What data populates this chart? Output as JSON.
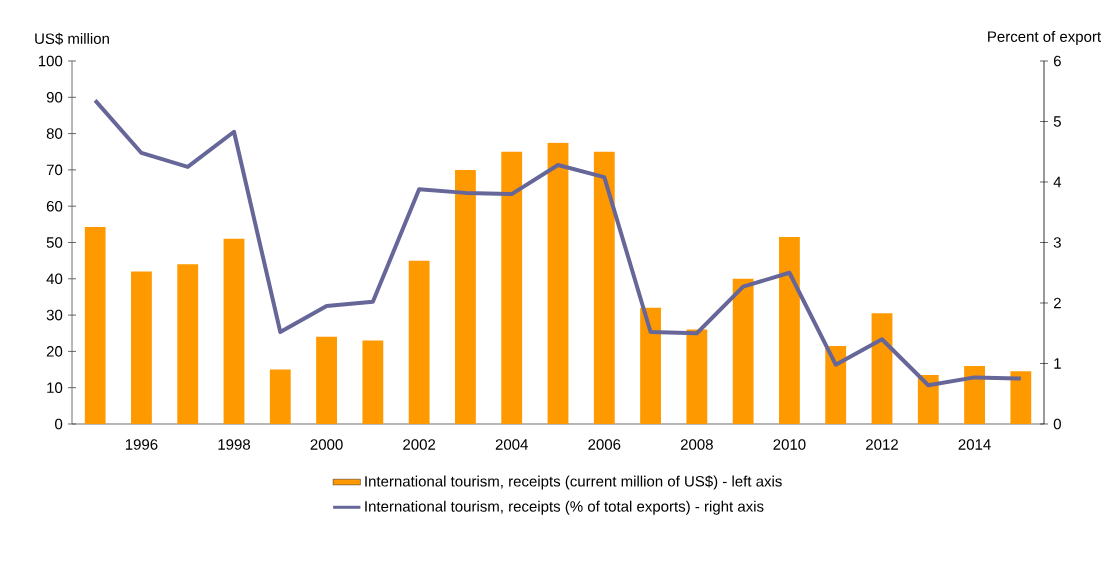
{
  "chart_data": {
    "type": "bar",
    "ylabel": "US$ million",
    "y2label": "Percent of export",
    "categories": [
      null,
      "1996",
      null,
      "1998",
      null,
      "2000",
      null,
      "2002",
      null,
      "2004",
      null,
      "2006",
      null,
      "2008",
      null,
      "2010",
      null,
      "2012",
      null,
      "2014",
      null
    ],
    "series": [
      {
        "name": "International tourism, receipts (current million of US$) - left axis",
        "color": "#ff9900",
        "values": [
          54.3,
          42,
          44,
          51,
          15,
          24,
          23,
          45,
          70,
          75,
          77.5,
          75,
          32,
          26,
          40,
          51.5,
          21.5,
          30.5,
          13.5,
          16,
          14.5
        ]
      },
      {
        "name": "International tourism, receipts (% of total exports) - right axis",
        "type": "line",
        "axis": "y2",
        "color": "#666699",
        "values": [
          5.35,
          4.48,
          4.25,
          4.83,
          1.52,
          1.95,
          2.02,
          3.88,
          3.82,
          3.8,
          4.28,
          4.08,
          1.52,
          1.5,
          2.27,
          2.5,
          0.98,
          1.4,
          0.64,
          0.77,
          0.75
        ]
      }
    ],
    "ylim": [
      0,
      100
    ],
    "yticks": [
      0,
      10,
      20,
      30,
      40,
      50,
      60,
      70,
      80,
      90,
      100
    ],
    "y2lim": [
      0,
      6
    ],
    "y2ticks": [
      0,
      1,
      2,
      3,
      4,
      5,
      6
    ],
    "legend": "bottom"
  }
}
